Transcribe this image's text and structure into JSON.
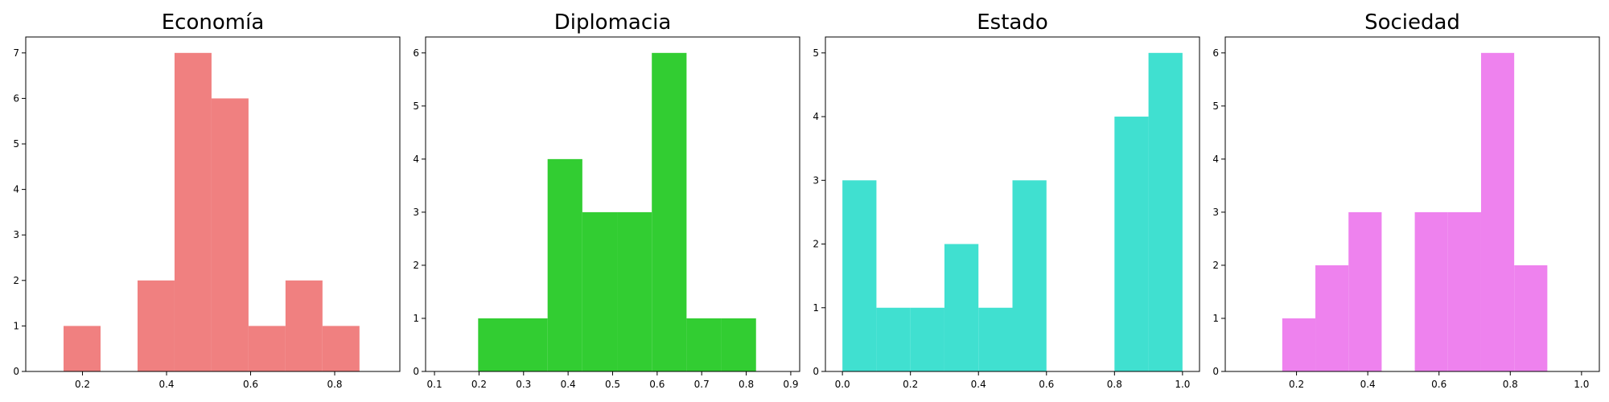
{
  "chart_data": [
    {
      "type": "bar",
      "title": "Economía",
      "color": "#f08080",
      "xlim": [
        0.065,
        0.955
      ],
      "ylim": [
        0,
        7.35
      ],
      "xticks": [
        0.2,
        0.4,
        0.6,
        0.8
      ],
      "xtick_labels": [
        "0.2",
        "0.4",
        "0.6",
        "0.8"
      ],
      "yticks": [
        0,
        1,
        2,
        3,
        4,
        5,
        6,
        7
      ],
      "ytick_labels": [
        "0",
        "1",
        "2",
        "3",
        "4",
        "5",
        "6",
        "7"
      ],
      "bins": [
        {
          "x0": 0.155,
          "x1": 0.243,
          "value": 1
        },
        {
          "x0": 0.243,
          "x1": 0.331,
          "value": 0
        },
        {
          "x0": 0.331,
          "x1": 0.419,
          "value": 2
        },
        {
          "x0": 0.419,
          "x1": 0.507,
          "value": 7
        },
        {
          "x0": 0.507,
          "x1": 0.595,
          "value": 6
        },
        {
          "x0": 0.595,
          "x1": 0.683,
          "value": 1
        },
        {
          "x0": 0.683,
          "x1": 0.771,
          "value": 2
        },
        {
          "x0": 0.771,
          "x1": 0.859,
          "value": 1
        }
      ]
    },
    {
      "type": "bar",
      "title": "Diplomacia",
      "color": "#32cd32",
      "xlim": [
        0.08,
        0.92
      ],
      "ylim": [
        0,
        6.3
      ],
      "xticks": [
        0.1,
        0.2,
        0.3,
        0.4,
        0.5,
        0.6,
        0.7,
        0.8,
        0.9
      ],
      "xtick_labels": [
        "0.1",
        "0.2",
        "0.3",
        "0.4",
        "0.5",
        "0.6",
        "0.7",
        "0.8",
        "0.9"
      ],
      "yticks": [
        0,
        1,
        2,
        3,
        4,
        5,
        6
      ],
      "ytick_labels": [
        "0",
        "1",
        "2",
        "3",
        "4",
        "5",
        "6"
      ],
      "bins": [
        {
          "x0": 0.198,
          "x1": 0.276,
          "value": 1
        },
        {
          "x0": 0.276,
          "x1": 0.354,
          "value": 1
        },
        {
          "x0": 0.354,
          "x1": 0.432,
          "value": 4
        },
        {
          "x0": 0.432,
          "x1": 0.51,
          "value": 3
        },
        {
          "x0": 0.51,
          "x1": 0.588,
          "value": 3
        },
        {
          "x0": 0.588,
          "x1": 0.666,
          "value": 6
        },
        {
          "x0": 0.666,
          "x1": 0.744,
          "value": 1
        },
        {
          "x0": 0.744,
          "x1": 0.822,
          "value": 1
        }
      ]
    },
    {
      "type": "bar",
      "title": "Estado",
      "color": "#40e0d0",
      "xlim": [
        -0.05,
        1.05
      ],
      "ylim": [
        0,
        5.25
      ],
      "xticks": [
        0.0,
        0.2,
        0.4,
        0.6,
        0.8,
        1.0
      ],
      "xtick_labels": [
        "0.0",
        "0.2",
        "0.4",
        "0.6",
        "0.8",
        "1.0"
      ],
      "yticks": [
        0,
        1,
        2,
        3,
        4,
        5
      ],
      "ytick_labels": [
        "0",
        "1",
        "2",
        "3",
        "4",
        "5"
      ],
      "bins": [
        {
          "x0": 0.0,
          "x1": 0.1,
          "value": 3
        },
        {
          "x0": 0.1,
          "x1": 0.2,
          "value": 1
        },
        {
          "x0": 0.2,
          "x1": 0.3,
          "value": 1
        },
        {
          "x0": 0.3,
          "x1": 0.4,
          "value": 2
        },
        {
          "x0": 0.4,
          "x1": 0.5,
          "value": 1
        },
        {
          "x0": 0.5,
          "x1": 0.6,
          "value": 3
        },
        {
          "x0": 0.6,
          "x1": 0.7,
          "value": 0
        },
        {
          "x0": 0.7,
          "x1": 0.8,
          "value": 0
        },
        {
          "x0": 0.8,
          "x1": 0.9,
          "value": 4
        },
        {
          "x0": 0.9,
          "x1": 1.0,
          "value": 5
        }
      ]
    },
    {
      "type": "bar",
      "title": "Sociedad",
      "color": "#ee82ee",
      "xlim": [
        0.0,
        1.05
      ],
      "ylim": [
        0,
        6.3
      ],
      "xticks": [
        0.2,
        0.4,
        0.6,
        0.8,
        1.0
      ],
      "xtick_labels": [
        "0.2",
        "0.4",
        "0.6",
        "0.8",
        "1.0"
      ],
      "yticks": [
        0,
        1,
        2,
        3,
        4,
        5,
        6
      ],
      "ytick_labels": [
        "0",
        "1",
        "2",
        "3",
        "4",
        "5",
        "6"
      ],
      "bins": [
        {
          "x0": 0.16,
          "x1": 0.253,
          "value": 1
        },
        {
          "x0": 0.253,
          "x1": 0.346,
          "value": 2
        },
        {
          "x0": 0.346,
          "x1": 0.439,
          "value": 3
        },
        {
          "x0": 0.439,
          "x1": 0.532,
          "value": 0
        },
        {
          "x0": 0.532,
          "x1": 0.625,
          "value": 3
        },
        {
          "x0": 0.625,
          "x1": 0.718,
          "value": 3
        },
        {
          "x0": 0.718,
          "x1": 0.811,
          "value": 6
        },
        {
          "x0": 0.811,
          "x1": 0.904,
          "value": 2
        }
      ]
    }
  ]
}
